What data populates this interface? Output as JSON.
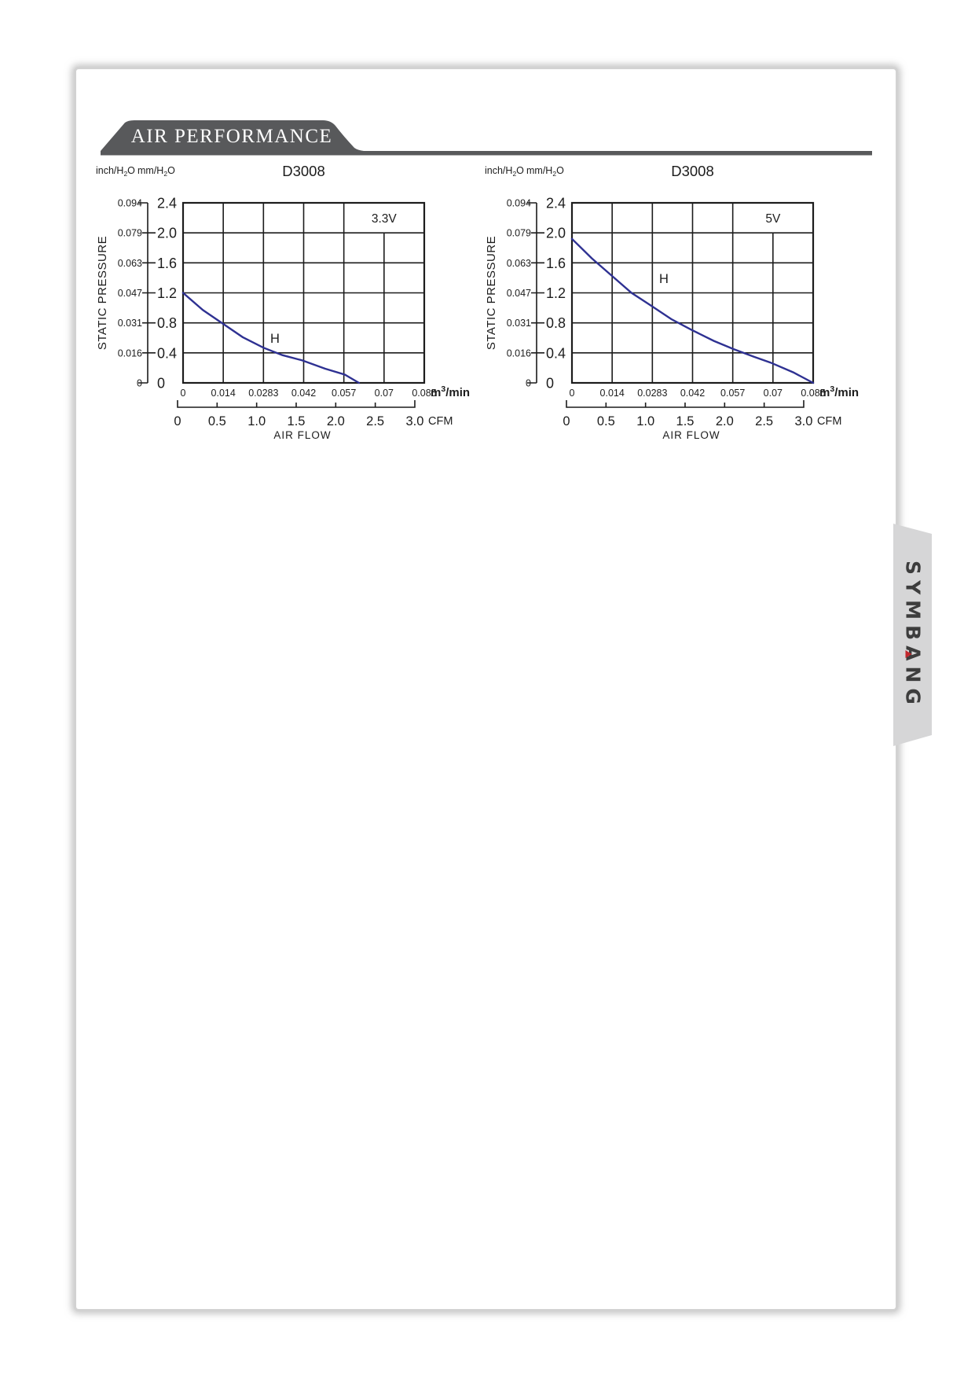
{
  "page": {
    "header": {
      "title": "AIR PERFORMANCE"
    },
    "side_tab": {
      "brand": "SYMBANG",
      "accent_color": "#c1272d",
      "tab_color": "#d6d6d7"
    }
  },
  "chart_data": [
    {
      "type": "line",
      "title": "D3008",
      "voltage_label": "3.3V",
      "curve_label": "H",
      "ylabel": "STATIC PRESSURE",
      "xlabel": "AIR FLOW",
      "y_unit_left": "inch/H2O",
      "y_unit_right": "mm/H2O",
      "x_unit_primary": "m3/min",
      "x_unit_secondary": "CFM",
      "y_ticks_mm": [
        "2.4",
        "2.0",
        "1.6",
        "1.2",
        "0.8",
        "0.4",
        "0"
      ],
      "y_ticks_inch": [
        "0.094",
        "0.079",
        "0.063",
        "0.047",
        "0.031",
        "0.016",
        "0"
      ],
      "x_ticks_m3": [
        "0",
        "0.014",
        "0.0283",
        "0.042",
        "0.057",
        "0.07",
        "0.085"
      ],
      "x_ticks_cfm": [
        "0",
        "0.5",
        "1.0",
        "1.5",
        "2.0",
        "2.5",
        "3.0"
      ],
      "xlim": [
        0,
        0.085
      ],
      "ylim": [
        0,
        2.4
      ],
      "grid": true,
      "curve_color": "#2e3192",
      "label_pos": [
        0.0324,
        0.535
      ],
      "points": [
        [
          0,
          1.2
        ],
        [
          0.007,
          0.97
        ],
        [
          0.014,
          0.79
        ],
        [
          0.021,
          0.61
        ],
        [
          0.0283,
          0.47
        ],
        [
          0.035,
          0.37
        ],
        [
          0.042,
          0.3
        ],
        [
          0.05,
          0.19
        ],
        [
          0.057,
          0.11
        ],
        [
          0.062,
          0.0
        ]
      ]
    },
    {
      "type": "line",
      "title": "D3008",
      "voltage_label": "5V",
      "curve_label": "H",
      "ylabel": "STATIC PRESSURE",
      "xlabel": "AIR FLOW",
      "y_unit_left": "inch/H2O",
      "y_unit_right": "mm/H2O",
      "x_unit_primary": "m3/min",
      "x_unit_secondary": "CFM",
      "y_ticks_mm": [
        "2.4",
        "2.0",
        "1.6",
        "1.2",
        "0.8",
        "0.4",
        "0"
      ],
      "y_ticks_inch": [
        "0.094",
        "0.079",
        "0.063",
        "0.047",
        "0.031",
        "0.016",
        "0"
      ],
      "x_ticks_m3": [
        "0",
        "0.014",
        "0.0283",
        "0.042",
        "0.057",
        "0.07",
        "0.085"
      ],
      "x_ticks_cfm": [
        "0",
        "0.5",
        "1.0",
        "1.5",
        "2.0",
        "2.5",
        "3.0"
      ],
      "xlim": [
        0,
        0.085
      ],
      "ylim": [
        0,
        2.4
      ],
      "grid": true,
      "curve_color": "#2e3192",
      "label_pos": [
        0.0324,
        1.33
      ],
      "points": [
        [
          0,
          1.92
        ],
        [
          0.007,
          1.66
        ],
        [
          0.014,
          1.43
        ],
        [
          0.021,
          1.2
        ],
        [
          0.0283,
          1.02
        ],
        [
          0.035,
          0.85
        ],
        [
          0.042,
          0.71
        ],
        [
          0.05,
          0.56
        ],
        [
          0.057,
          0.45
        ],
        [
          0.064,
          0.35
        ],
        [
          0.07,
          0.27
        ],
        [
          0.078,
          0.14
        ],
        [
          0.085,
          0.0
        ]
      ]
    }
  ]
}
